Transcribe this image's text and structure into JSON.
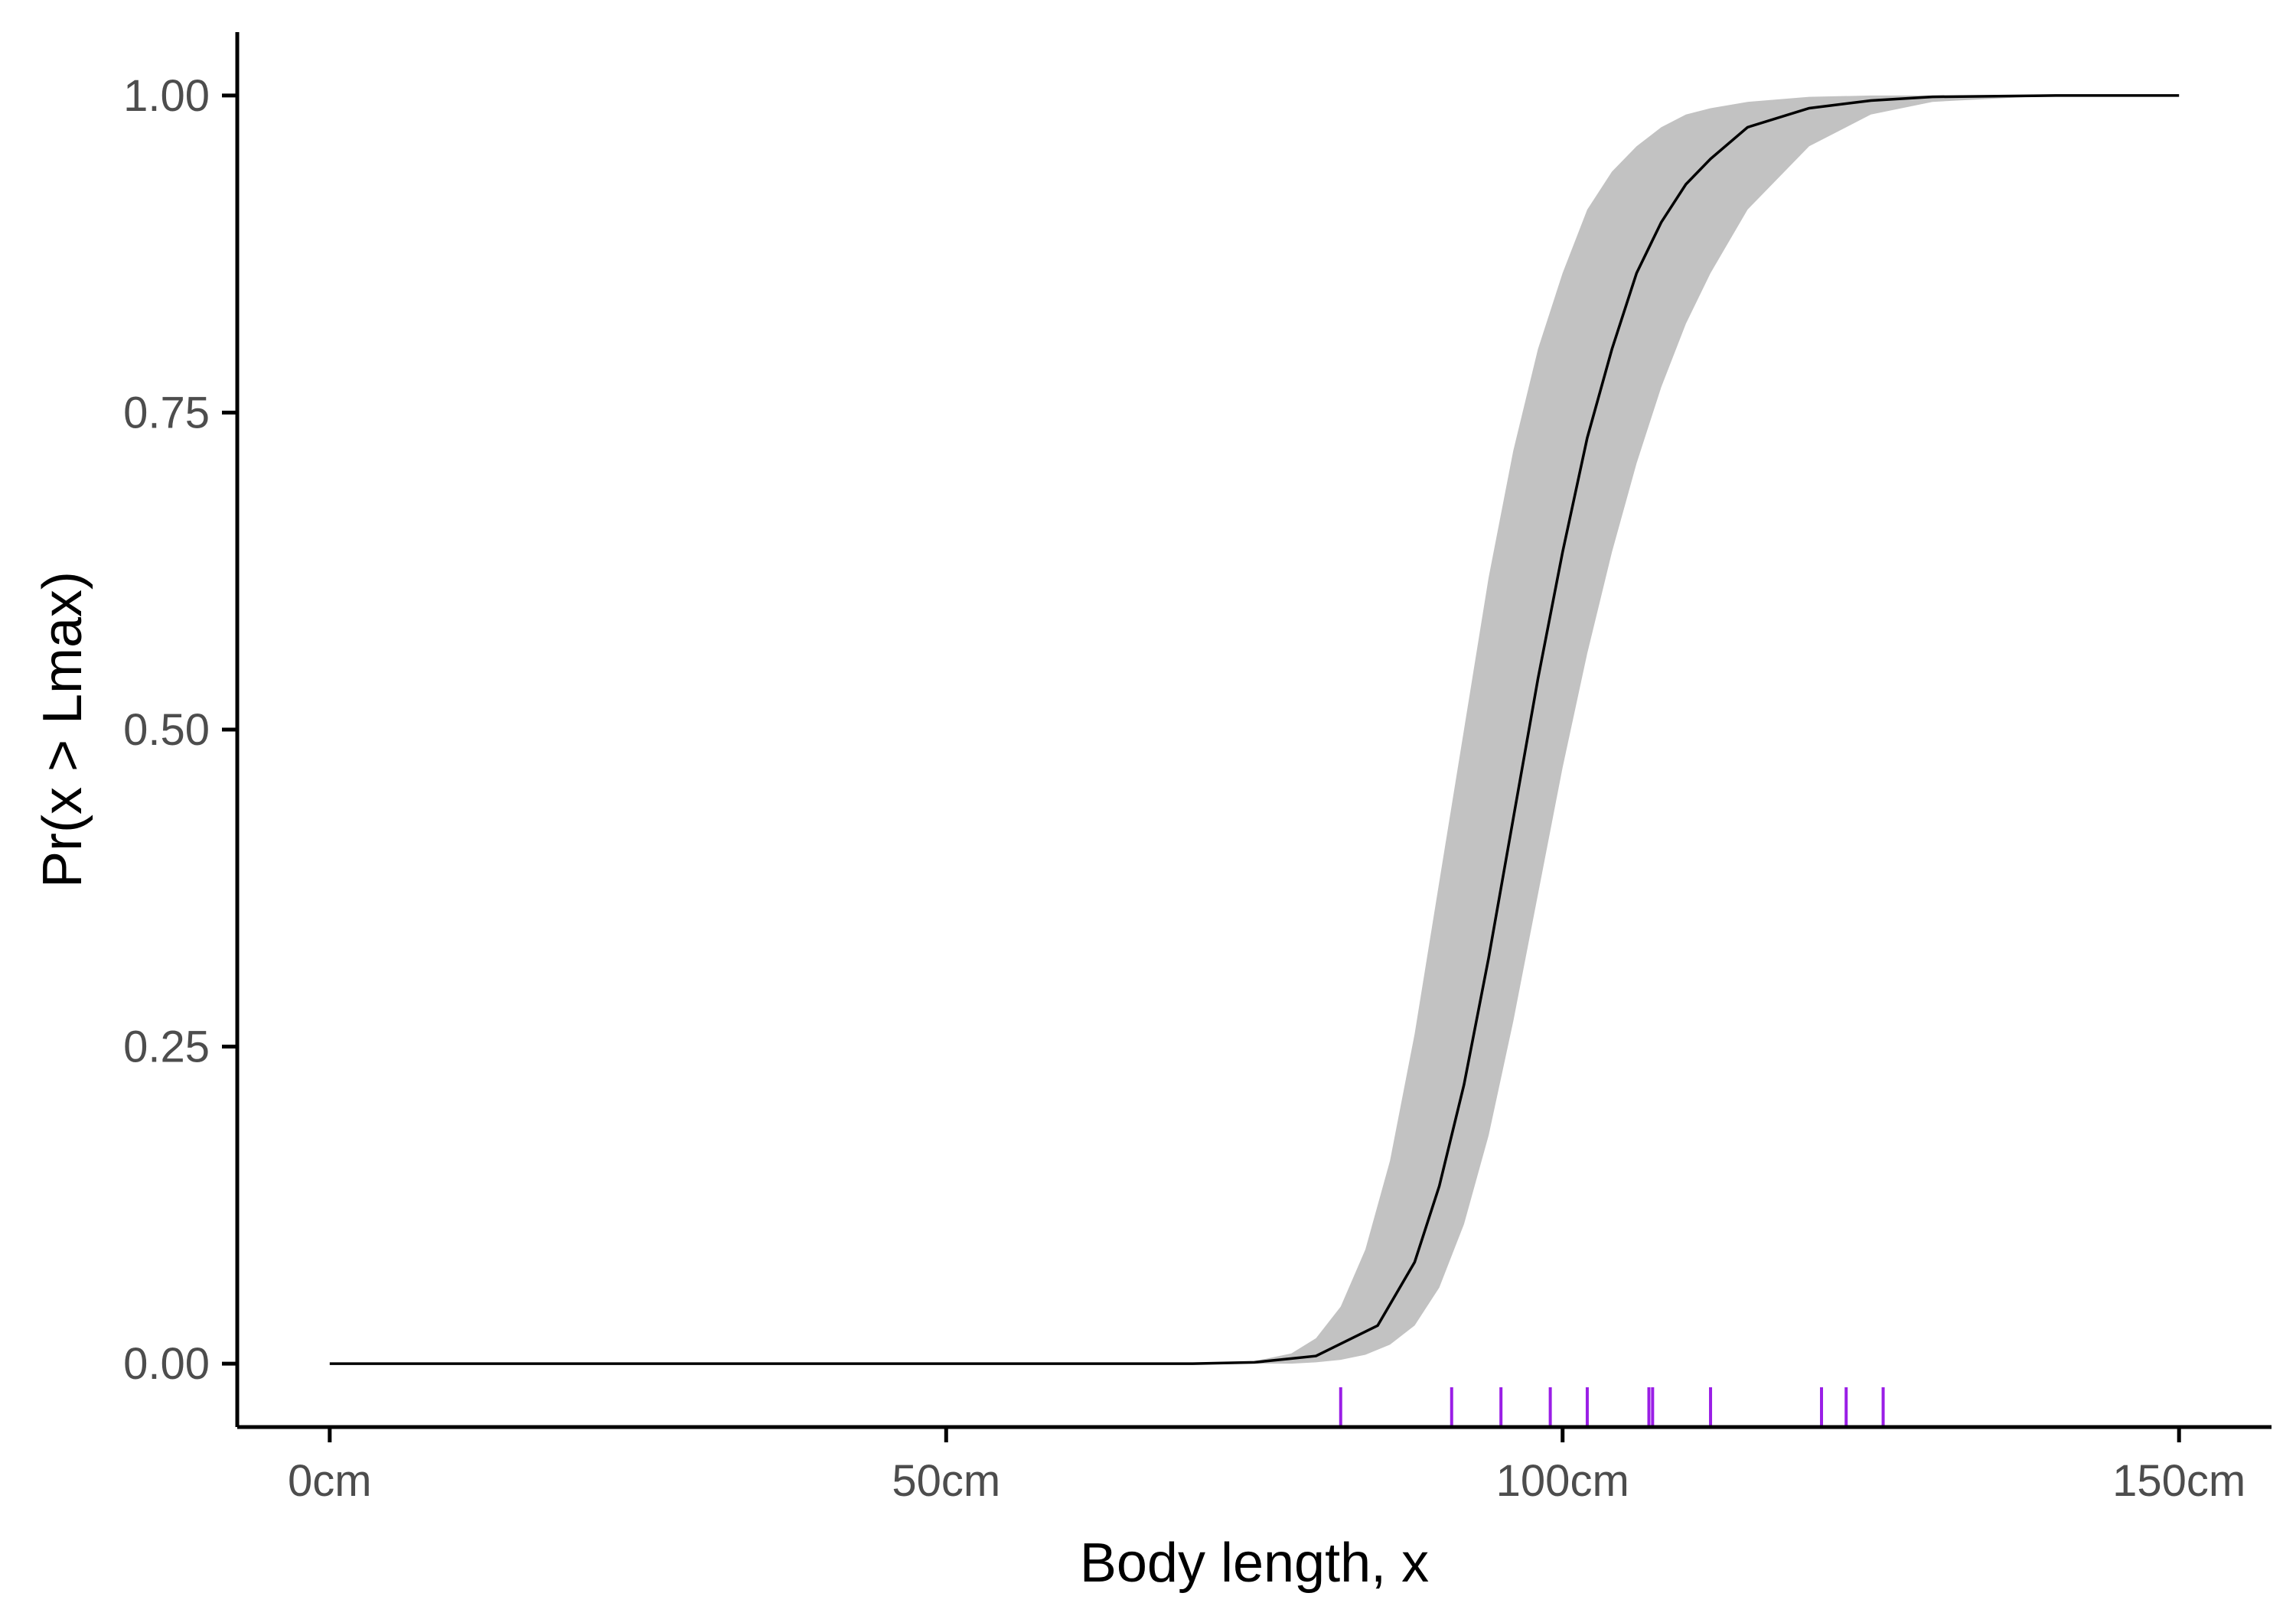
{
  "chart_data": {
    "type": "line",
    "xlabel": "Body length, x",
    "ylabel": "Pr(x > Lmax)",
    "xlim": [
      -7.5,
      157.5
    ],
    "ylim": [
      -0.05,
      1.05
    ],
    "x_ticks": [
      0,
      50,
      100,
      150
    ],
    "x_tick_labels": [
      "0cm",
      "50cm",
      "100cm",
      "150cm"
    ],
    "y_ticks": [
      0,
      0.25,
      0.5,
      0.75,
      1
    ],
    "y_tick_labels": [
      "0.00",
      "0.25",
      "0.50",
      "0.75",
      "1.00"
    ],
    "grid": false,
    "legend": "none",
    "series": [
      {
        "kind": "line",
        "x": [
          0,
          70,
          75,
          80,
          85,
          88,
          90,
          92,
          94,
          96,
          98,
          100,
          102,
          104,
          106,
          108,
          110,
          112,
          115,
          120,
          125,
          130,
          140,
          150
        ],
        "y": [
          0,
          0,
          0.001,
          0.006,
          0.03,
          0.08,
          0.14,
          0.22,
          0.32,
          0.43,
          0.54,
          0.64,
          0.73,
          0.8,
          0.86,
          0.9,
          0.93,
          0.95,
          0.975,
          0.99,
          0.996,
          0.999,
          1,
          1
        ]
      },
      {
        "kind": "ribbon",
        "x": [
          0,
          70,
          75,
          78,
          80,
          82,
          84,
          86,
          88,
          90,
          92,
          94,
          96,
          98,
          100,
          102,
          104,
          106,
          108,
          110,
          112,
          115,
          120,
          125,
          130,
          140,
          150
        ],
        "ymin": [
          0,
          0,
          0,
          0,
          0.001,
          0.003,
          0.007,
          0.015,
          0.03,
          0.06,
          0.11,
          0.18,
          0.27,
          0.37,
          0.47,
          0.56,
          0.64,
          0.71,
          0.77,
          0.82,
          0.86,
          0.91,
          0.96,
          0.985,
          0.995,
          1,
          1
        ],
        "ymax": [
          0,
          0,
          0.002,
          0.008,
          0.02,
          0.045,
          0.09,
          0.16,
          0.26,
          0.38,
          0.5,
          0.62,
          0.72,
          0.8,
          0.86,
          0.91,
          0.94,
          0.96,
          0.975,
          0.985,
          0.99,
          0.995,
          0.999,
          1,
          1,
          1,
          1
        ]
      },
      {
        "kind": "rug",
        "x": [
          82,
          91,
          95,
          99,
          102,
          107,
          107.3,
          112,
          121,
          123,
          126
        ]
      }
    ],
    "colors": {
      "line": "#000000",
      "ribbon": "#c2c2c2",
      "rug": "#9a1ee6",
      "axis": "#000000",
      "tick_label": "#4d4d4d"
    }
  }
}
